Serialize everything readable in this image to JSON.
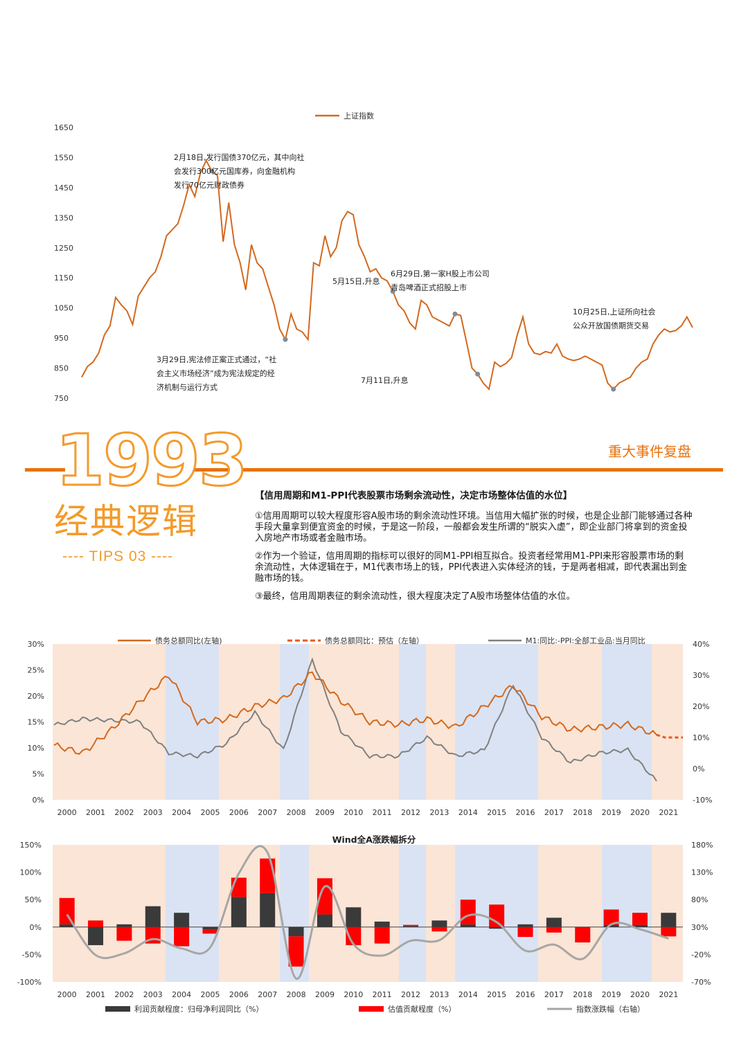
{
  "top_chart": {
    "legend": "上证指数",
    "y_ticks": [
      "1650",
      "1550",
      "1450",
      "1350",
      "1250",
      "1150",
      "1050",
      "950",
      "850",
      "750"
    ],
    "annotations": [
      {
        "lines": [
          "2月18日,发行国债370亿元，其中向社",
          "会发行300亿元国库券，向金融机构",
          "发行70亿元财政债券"
        ]
      },
      {
        "lines": [
          "3月29日,宪法修正案正式通过，“社",
          "会主义市场经济”成为宪法规定的经",
          "济机制与运行方式"
        ]
      },
      {
        "lines": [
          "5月15日,升息"
        ]
      },
      {
        "lines": [
          "6月29日,第一家H股上市公司",
          "青岛啤酒正式招股上市"
        ]
      },
      {
        "lines": [
          "7月11日,升息"
        ]
      },
      {
        "lines": [
          "10月25日,上证所向社会",
          "公众开放国债期货交易"
        ]
      }
    ]
  },
  "section": {
    "big_year": "1993",
    "big_title": "经典逻辑",
    "tips": "---- TIPS 03 ----",
    "right_title": "重大事件复盘"
  },
  "text": {
    "heading": "【信用周期和M1-PPI代表股票市场剩余流动性，决定市场整体估值的水位】",
    "p1": "①信用周期可以较大程度形容A股市场的剩余流动性环境。当信用大幅扩张的时候，也是企业部门能够通过各种手段大量拿到便宜资金的时候，于是这一阶段，一般都会发生所谓的“脱实入虚”，即企业部门将拿到的资金投入房地产市场或者金融市场。",
    "p2": "②作为一个验证，信用周期的指标可以很好的同M1-PPI相互拟合。投资者经常用M1-PPI来形容股票市场的剩余流动性，大体逻辑在于，M1代表市场上的钱，PPI代表进入实体经济的钱，于是两者相减，即代表漏出到金融市场的钱。",
    "p3": "③最终，信用周期表征的剩余流动性，很大程度决定了A股市场整体估值的水位。"
  },
  "mid_chart": {
    "legend": [
      "债务总额同比(左轴)",
      "债务总额同比：预估（左轴）",
      "M1:同比:-PPI:全部工业品:当月同比"
    ],
    "left_ticks": [
      "30%",
      "25%",
      "20%",
      "15%",
      "10%",
      "5%",
      "0%"
    ],
    "right_ticks": [
      "40%",
      "30%",
      "20%",
      "10%",
      "0%",
      "-10%"
    ],
    "years": [
      "2000",
      "2001",
      "2002",
      "2003",
      "2004",
      "2005",
      "2006",
      "2007",
      "2008",
      "2009",
      "2010",
      "2011",
      "2012",
      "2013",
      "2014",
      "2015",
      "2016",
      "2017",
      "2018",
      "2019",
      "2020",
      "2021"
    ]
  },
  "bottom_chart": {
    "title": "Wind全A涨跌幅拆分",
    "left_ticks": [
      "150%",
      "100%",
      "50%",
      "0%",
      "-50%",
      "-100%"
    ],
    "right_ticks": [
      "180%",
      "130%",
      "80%",
      "30%",
      "-20%",
      "-70%"
    ],
    "legend": [
      "利润贡献程度：归母净利润同比（%）",
      "估值贡献程度（%）",
      "指数涨跌幅（右轴）"
    ]
  },
  "chart_data": [
    {
      "type": "line",
      "title": "",
      "series": [
        {
          "name": "上证指数",
          "values": [
            820,
            855,
            870,
            900,
            960,
            990,
            1085,
            1060,
            1040,
            995,
            1090,
            1120,
            1150,
            1170,
            1220,
            1290,
            1310,
            1330,
            1390,
            1460,
            1420,
            1500,
            1540,
            1505,
            1490,
            1270,
            1400,
            1260,
            1200,
            1110,
            1260,
            1200,
            1180,
            1120,
            1060,
            980,
            945,
            1030,
            980,
            970,
            945,
            1200,
            1190,
            1290,
            1220,
            1250,
            1340,
            1370,
            1360,
            1260,
            1220,
            1170,
            1180,
            1150,
            1140,
            1105,
            1060,
            1040,
            1000,
            980,
            1075,
            1060,
            1020,
            1010,
            1000,
            990,
            1030,
            1025,
            940,
            850,
            830,
            800,
            780,
            870,
            855,
            865,
            885,
            960,
            1020,
            930,
            900,
            895,
            905,
            900,
            930,
            890,
            880,
            875,
            880,
            890,
            880,
            870,
            860,
            800,
            780,
            800,
            810,
            820,
            850,
            870,
            880,
            930,
            960,
            980,
            970,
            975,
            990,
            1020,
            985
          ]
        }
      ],
      "ylim": [
        750,
        1650
      ],
      "color": "#D2691E"
    },
    {
      "type": "line",
      "title": "",
      "x": [
        "2000",
        "2001",
        "2002",
        "2003",
        "2004",
        "2005",
        "2006",
        "2007",
        "2008",
        "2009",
        "2010",
        "2011",
        "2012",
        "2013",
        "2014",
        "2015",
        "2016",
        "2017",
        "2018",
        "2019",
        "2020",
        "2021"
      ],
      "series": [
        {
          "name": "债务总额同比(左轴)",
          "axis": "left",
          "values": [
            10.5,
            9.0,
            13.5,
            19.0,
            24.0,
            15.0,
            15.5,
            18.0,
            19.5,
            24.5,
            19.0,
            15.0,
            14.5,
            15.5,
            14.0,
            18.0,
            22.0,
            16.0,
            13.5,
            14.0,
            14.5,
            12.5
          ]
        },
        {
          "name": "M1:同比:-PPI:全部工业品:当月同比",
          "axis": "right",
          "values": [
            14.0,
            16.0,
            15.5,
            15.0,
            5.0,
            4.0,
            8.0,
            18.0,
            6.0,
            35.0,
            12.0,
            4.0,
            4.0,
            10.0,
            4.0,
            6.0,
            27.0,
            10.0,
            2.0,
            5.0,
            6.0,
            -4.0
          ]
        }
      ],
      "ylim": [
        0,
        30
      ],
      "ylim_right": [
        -10,
        40
      ]
    },
    {
      "type": "bar",
      "title": "Wind全A涨跌幅拆分",
      "categories": [
        "2000",
        "2001",
        "2002",
        "2003",
        "2004",
        "2005",
        "2006",
        "2007",
        "2008",
        "2009",
        "2010",
        "2011",
        "2012",
        "2013",
        "2014",
        "2015",
        "2016",
        "2017",
        "2018",
        "2019",
        "2020",
        "2021"
      ],
      "series": [
        {
          "name": "利润贡献程度：归母净利润同比（%）",
          "values": [
            5,
            -33,
            5,
            38,
            26,
            -5,
            55,
            62,
            -17,
            23,
            36,
            10,
            2,
            12,
            5,
            -3,
            5,
            17,
            0,
            4,
            4,
            26
          ]
        },
        {
          "name": "估值贡献程度（%）",
          "values": [
            48,
            12,
            -25,
            -30,
            -35,
            -7,
            35,
            63,
            -55,
            66,
            -33,
            -30,
            2,
            -8,
            45,
            41,
            -18,
            -10,
            -28,
            28,
            22,
            -17
          ]
        },
        {
          "name": "指数涨跌幅（右轴）",
          "axis": "right",
          "values": [
            53,
            -21,
            -18,
            8,
            -9,
            -7,
            128,
            166,
            -64,
            104,
            -1,
            -22,
            5,
            6,
            51,
            39,
            -13,
            -2,
            -28,
            35,
            26,
            9
          ]
        }
      ],
      "ylim": [
        -100,
        150
      ],
      "ylim_right": [
        -70,
        180
      ]
    }
  ]
}
